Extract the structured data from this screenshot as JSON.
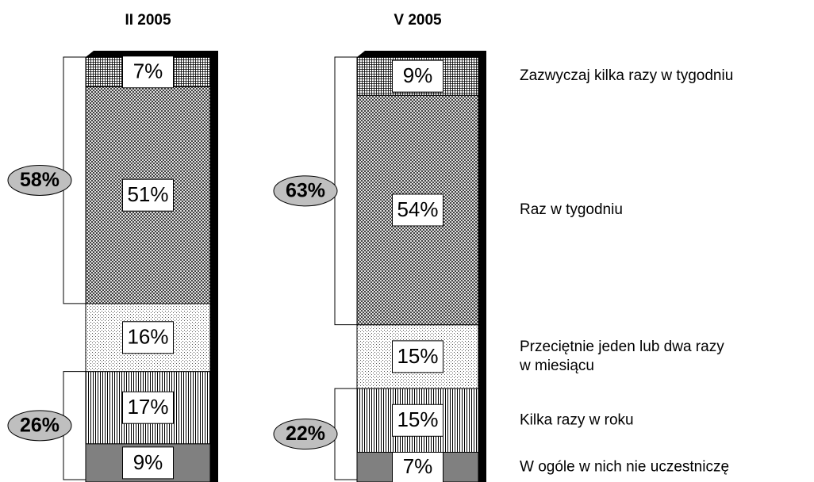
{
  "chart_data": {
    "type": "stacked_bar_100",
    "categories": [
      "II 2005",
      "V 2005"
    ],
    "series": [
      {
        "name": "W ogóle w nich nie uczestniczę",
        "color": "#808080",
        "values": [
          9,
          7
        ],
        "value_labels": [
          "9%",
          "7%"
        ]
      },
      {
        "name": "Kilka razy w roku",
        "color": "#ffffff",
        "values": [
          17,
          15
        ],
        "value_labels": [
          "17%",
          "15%"
        ]
      },
      {
        "name": "Przeciętnie jeden lub dwa razy w miesiącu",
        "color": "#ffffff",
        "values": [
          16,
          15
        ],
        "value_labels": [
          "16%",
          "15%"
        ]
      },
      {
        "name": "Raz w tygodniu",
        "color": "#ffffff",
        "values": [
          51,
          54
        ],
        "value_labels": [
          "51%",
          "54%"
        ]
      },
      {
        "name": "Zazwyczaj kilka razy w tygodniu",
        "color": "#ffffff",
        "values": [
          7,
          9
        ],
        "value_labels": [
          "7%",
          "9%"
        ]
      }
    ],
    "annotations": [
      {
        "category": "II 2005",
        "value": 58,
        "label": "58%"
      },
      {
        "category": "II 2005",
        "value": 26,
        "label": "26%"
      },
      {
        "category": "V 2005",
        "value": 63,
        "label": "63%"
      },
      {
        "category": "V 2005",
        "value": 22,
        "label": "22%"
      }
    ]
  }
}
